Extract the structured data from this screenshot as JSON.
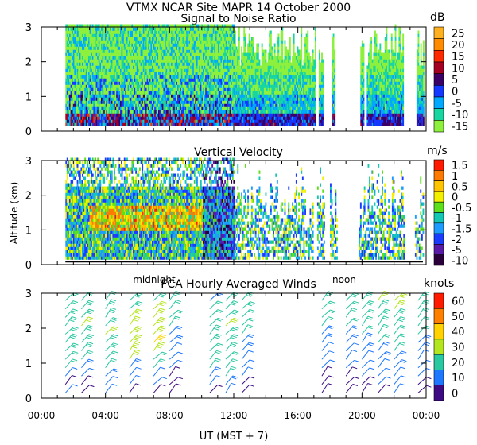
{
  "header": {
    "title": "VTMX   NCAR Site   MAPR 14 October 2000",
    "subtitle": "Signal to Noise Ratio"
  },
  "chart_data": [
    {
      "type": "heatmap",
      "title": "Signal to Noise Ratio",
      "ylabel": "",
      "yticks": [
        "0",
        "1",
        "2",
        "3"
      ],
      "ylim": [
        0,
        3
      ],
      "unit": "dB",
      "colorbar": [
        {
          "label": "25",
          "color": "#ffb020"
        },
        {
          "label": "20",
          "color": "#ff8c00"
        },
        {
          "label": "15",
          "color": "#ff2a00"
        },
        {
          "label": "10",
          "color": "#a50021"
        },
        {
          "label": "5",
          "color": "#3a0066"
        },
        {
          "label": "0",
          "color": "#1438ff"
        },
        {
          "label": "-5",
          "color": "#00a8ff"
        },
        {
          "label": "-10",
          "color": "#19d6a0"
        },
        {
          "label": "-15",
          "color": "#8cf03c"
        }
      ]
    },
    {
      "type": "heatmap",
      "title": "Vertical Velocity",
      "ylabel": "Altitude (km)",
      "yticks": [
        "0",
        "1",
        "2",
        "3"
      ],
      "ylim": [
        0,
        3
      ],
      "unit": "m/s",
      "annotations": [
        "midnight",
        "noon"
      ],
      "colorbar": [
        {
          "label": "1.5",
          "color": "#ff1a00"
        },
        {
          "label": "1",
          "color": "#ff7a00"
        },
        {
          "label": "0.5",
          "color": "#ffc400"
        },
        {
          "label": "0",
          "color": "#f2f000"
        },
        {
          "label": "-0.5",
          "color": "#5ce01a"
        },
        {
          "label": "-1",
          "color": "#12c8b4"
        },
        {
          "label": "-1.5",
          "color": "#1e9bff"
        },
        {
          "label": "-2",
          "color": "#1a3cff"
        },
        {
          "label": "-5",
          "color": "#5a1aa8"
        },
        {
          "label": "-10",
          "color": "#2a003a"
        }
      ]
    },
    {
      "type": "scatter",
      "title": "FCA Hourly Averaged Winds",
      "xlabel": "UT  (MST + 7)",
      "yticks": [
        "0",
        "1",
        "2",
        "3"
      ],
      "ylim": [
        0,
        3
      ],
      "xticks": [
        "00:00",
        "04:00",
        "08:00",
        "12:00",
        "16:00",
        "20:00",
        "00:00"
      ],
      "xlim": [
        0,
        24
      ],
      "unit": "knots",
      "colorbar": [
        {
          "label": "60",
          "color": "#ff1a00"
        },
        {
          "label": "50",
          "color": "#ff8000"
        },
        {
          "label": "40",
          "color": "#ffd200"
        },
        {
          "label": "30",
          "color": "#b4e61e"
        },
        {
          "label": "20",
          "color": "#28c8a0"
        },
        {
          "label": "10",
          "color": "#1e78ff"
        },
        {
          "label": "0",
          "color": "#3c0a82"
        }
      ],
      "series": [
        {
          "hour": 1.5,
          "speeds": [
            12,
            8,
            14,
            20,
            24,
            26,
            27,
            28,
            27,
            26,
            24,
            22
          ]
        },
        {
          "hour": 2.5,
          "speeds": [
            6,
            9,
            14,
            18,
            22,
            26,
            28,
            29,
            30,
            28,
            26,
            24
          ]
        },
        {
          "hour": 4.0,
          "speeds": [
            10,
            12,
            15,
            20,
            24,
            27,
            29,
            30,
            29,
            27,
            25,
            23
          ]
        },
        {
          "hour": 5.5,
          "speeds": [
            8,
            10,
            14,
            18,
            34,
            36,
            38,
            36,
            34,
            30,
            28,
            26
          ]
        },
        {
          "hour": 7.0,
          "speeds": [
            4,
            10,
            12,
            20,
            24,
            38,
            40,
            38,
            36,
            32,
            30,
            28
          ]
        },
        {
          "hour": 8.0,
          "speeds": [
            3,
            6,
            8,
            10,
            12,
            14,
            16,
            18,
            20,
            22,
            24,
            26
          ]
        },
        {
          "hour": 10.5,
          "speeds": [
            8,
            12,
            16,
            20,
            22,
            24,
            26,
            26,
            24,
            22,
            20,
            18
          ]
        },
        {
          "hour": 11.5,
          "speeds": [
            14,
            18,
            20,
            22,
            24,
            26,
            28,
            29,
            30,
            29,
            28,
            26
          ]
        },
        {
          "hour": 12.5,
          "speeds": [
            6,
            8,
            10,
            12,
            14,
            16,
            18,
            20,
            22,
            24,
            26,
            28
          ]
        },
        {
          "hour": 17.5,
          "speeds": [
            3,
            6,
            8,
            10,
            12,
            14,
            16,
            18,
            20,
            22,
            24,
            26
          ]
        },
        {
          "hour": 19.0,
          "speeds": [
            4,
            6,
            8,
            10,
            12,
            14,
            16,
            18,
            20,
            22,
            24,
            26
          ]
        },
        {
          "hour": 20.0,
          "speeds": [
            6,
            8,
            10,
            12,
            14,
            16,
            18,
            20,
            22,
            24,
            26,
            28
          ]
        },
        {
          "hour": 21.0,
          "speeds": [
            8,
            10,
            12,
            14,
            16,
            18,
            20,
            22,
            24,
            26,
            28,
            30
          ]
        },
        {
          "hour": 22.0,
          "speeds": [
            10,
            12,
            14,
            16,
            18,
            20,
            22,
            24,
            26,
            28,
            30,
            32
          ]
        },
        {
          "hour": 23.5,
          "speeds": [
            6,
            8,
            10,
            12,
            14,
            16,
            18,
            20,
            22,
            24,
            26,
            28
          ]
        }
      ]
    }
  ]
}
